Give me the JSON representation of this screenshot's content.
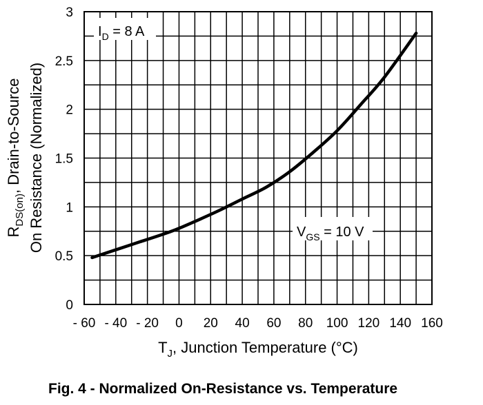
{
  "chart_data": {
    "type": "line",
    "caption": "Fig. 4 - Normalized On-Resistance vs. Temperature",
    "xlabel": {
      "main": "T",
      "sub": "J",
      "rest": ", Junction Temperature (°C)"
    },
    "ylabel": {
      "line1": {
        "main": "R",
        "sub": "DS(on)",
        "rest": ", Drain-to-Source"
      },
      "line2": "On Resistance (Normalized)"
    },
    "xlim": [
      -60,
      160
    ],
    "ylim": [
      0,
      3
    ],
    "x_ticks": [
      -60,
      -40,
      -20,
      0,
      20,
      40,
      60,
      80,
      100,
      120,
      140,
      160
    ],
    "x_tick_labels": [
      "- 60",
      "- 40",
      "- 20",
      "0",
      "20",
      "40",
      "60",
      "80",
      "100",
      "120",
      "140",
      "160"
    ],
    "y_ticks": [
      0,
      0.5,
      1,
      1.5,
      2,
      2.5,
      3
    ],
    "y_tick_labels": [
      "0",
      "0.5",
      "1",
      "1.5",
      "2",
      "2.5",
      "3"
    ],
    "grid": {
      "x_minor_step": 10,
      "y_minor_step": 0.25
    },
    "annotations": [
      {
        "main": "I",
        "sub": "D",
        "rest": " = 8 A"
      },
      {
        "main": "V",
        "sub": "GS",
        "rest": " = 10 V"
      }
    ],
    "series": [
      {
        "name": "RDS(on) normalized",
        "x": [
          -55,
          -40,
          -25,
          -10,
          0,
          10,
          25,
          40,
          55,
          70,
          85,
          100,
          115,
          130,
          150
        ],
        "y": [
          0.48,
          0.56,
          0.64,
          0.72,
          0.78,
          0.85,
          0.96,
          1.08,
          1.2,
          1.36,
          1.56,
          1.78,
          2.05,
          2.33,
          2.78
        ]
      }
    ]
  }
}
